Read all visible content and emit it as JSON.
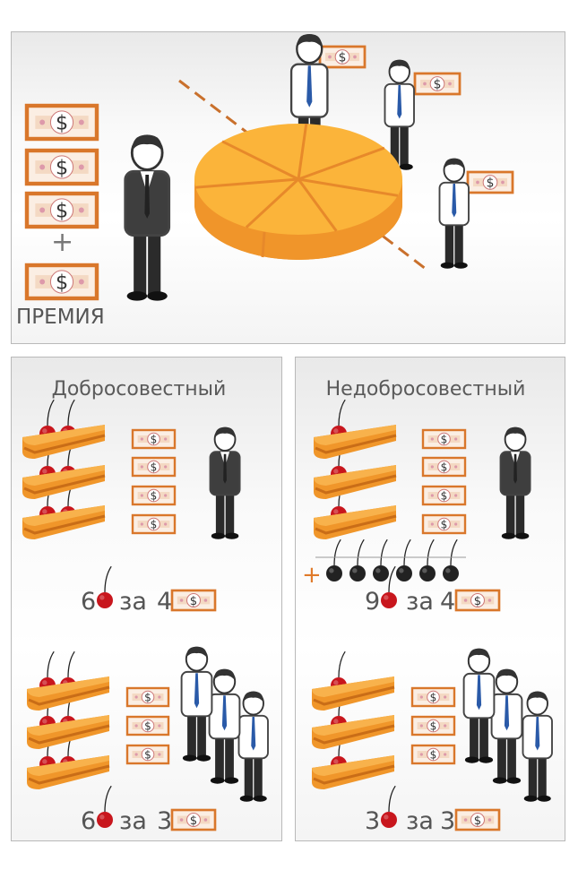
{
  "top": {
    "bonus_label": "ПРЕМИЯ",
    "plus": "+",
    "bills_before_plus": 3,
    "bills_after_plus": 1,
    "pie_slices": 7
  },
  "left": {
    "title": "Добросовестный",
    "scenario1": {
      "cherries_per_slice": 2,
      "slices": 3,
      "bills": 4,
      "employees": 1,
      "cherries": "6",
      "word": "за",
      "bills_count": "4"
    },
    "scenario2": {
      "cherries_per_slice": 2,
      "slices": 3,
      "bills": 3,
      "employees": 3,
      "cherries": "6",
      "word": "за",
      "bills_count": "3"
    }
  },
  "right": {
    "title": "Недобросовестный",
    "scenario1": {
      "cherries_per_slice": 1,
      "slices": 3,
      "bills": 4,
      "employees": 1,
      "extra_black_cherries": 6,
      "plus": "+",
      "cherries": "9",
      "word": "за",
      "bills_count": "4"
    },
    "scenario2": {
      "cherries_per_slice": 1,
      "slices": 3,
      "bills": 3,
      "employees": 3,
      "cherries": "3",
      "word": "за",
      "bills_count": "3"
    }
  },
  "colors": {
    "bill_border": "#d9772b",
    "cake_top": "#f8b24c",
    "cake_side": "#f0962a",
    "cherry": "#c8161d",
    "black_cherry": "#222222",
    "tie": "#2a5aa8",
    "text": "#555555"
  }
}
